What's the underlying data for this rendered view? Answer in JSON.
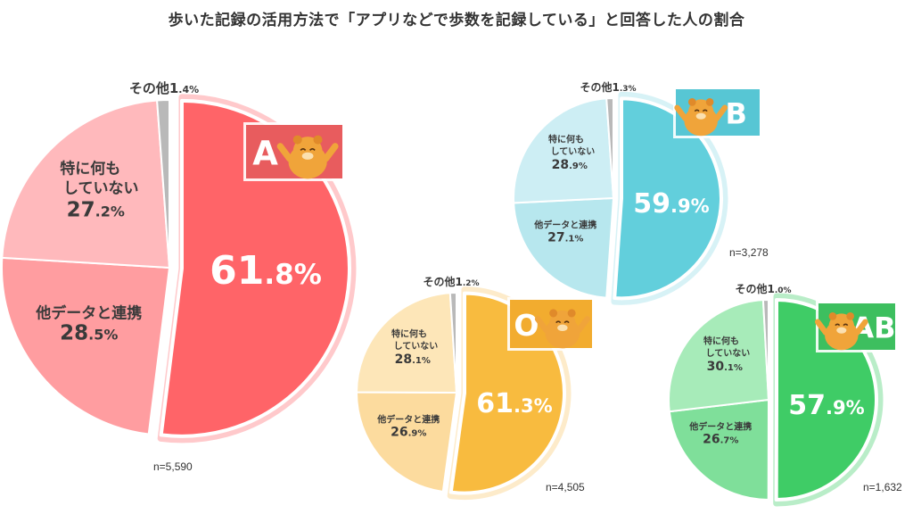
{
  "title": "歩いた記録の活用方法で「アプリなどで歩数を記録している」と回答した人の割合",
  "chart_data": [
    {
      "type": "pie",
      "group": "A",
      "n": "n=5,590",
      "colors": {
        "main": "#ff6468",
        "mid": "#ff9da0",
        "light": "#ffb9bc",
        "other": "#b9b9b9",
        "badge": "#e85c5e"
      },
      "slices": [
        {
          "name": "アプリなどで歩数を記録している",
          "value": 61.8,
          "label_int": "61",
          "label_dec": ".8%"
        },
        {
          "name": "他データと連携",
          "value": 28.5,
          "label_int": "28",
          "label_dec": ".5%"
        },
        {
          "name": "特に何もしていない",
          "value": 27.2,
          "label_int": "27",
          "label_dec": ".2%"
        },
        {
          "name": "その他",
          "value": 1.4,
          "label_int": "1",
          "label_dec": ".4%"
        }
      ]
    },
    {
      "type": "pie",
      "group": "B",
      "n": "n=3,278",
      "colors": {
        "main": "#62cfdc",
        "mid": "#b7e7ee",
        "light": "#cdeef4",
        "other": "#b9b9b9",
        "badge": "#57c6d4"
      },
      "slices": [
        {
          "name": "アプリなどで歩数を記録している",
          "value": 59.9,
          "label_int": "59",
          "label_dec": ".9%"
        },
        {
          "name": "他データと連携",
          "value": 27.1,
          "label_int": "27",
          "label_dec": ".1%"
        },
        {
          "name": "特に何もしていない",
          "value": 28.9,
          "label_int": "28",
          "label_dec": ".9%"
        },
        {
          "name": "その他",
          "value": 1.3,
          "label_int": "1",
          "label_dec": ".3%"
        }
      ]
    },
    {
      "type": "pie",
      "group": "O",
      "n": "n=4,505",
      "colors": {
        "main": "#f8bb3f",
        "mid": "#fcdb9e",
        "light": "#fde6b8",
        "other": "#b9b9b9",
        "badge": "#f2ac2f"
      },
      "slices": [
        {
          "name": "アプリなどで歩数を記録している",
          "value": 61.3,
          "label_int": "61",
          "label_dec": ".3%"
        },
        {
          "name": "他データと連携",
          "value": 26.9,
          "label_int": "26",
          "label_dec": ".9%"
        },
        {
          "name": "特に何もしていない",
          "value": 28.1,
          "label_int": "28",
          "label_dec": ".1%"
        },
        {
          "name": "その他",
          "value": 1.2,
          "label_int": "1",
          "label_dec": ".2%"
        }
      ]
    },
    {
      "type": "pie",
      "group": "AB",
      "n": "n=1,632",
      "colors": {
        "main": "#3fcc66",
        "mid": "#7fdf9a",
        "light": "#a7ebb9",
        "other": "#b9b9b9",
        "badge": "#3dbf5f"
      },
      "slices": [
        {
          "name": "アプリなどで歩数を記録している",
          "value": 57.9,
          "label_int": "57",
          "label_dec": ".9%"
        },
        {
          "name": "他データと連携",
          "value": 26.7,
          "label_int": "26",
          "label_dec": ".7%"
        },
        {
          "name": "特に何もしていない",
          "value": 30.1,
          "label_int": "30",
          "label_dec": ".1%"
        },
        {
          "name": "その他",
          "value": 1.0,
          "label_int": "1",
          "label_dec": ".0%"
        }
      ]
    }
  ],
  "label_texts": {
    "other": "その他",
    "linked": "他データと連携",
    "nothing_line1": "特に何も",
    "nothing_line2": "していない"
  }
}
